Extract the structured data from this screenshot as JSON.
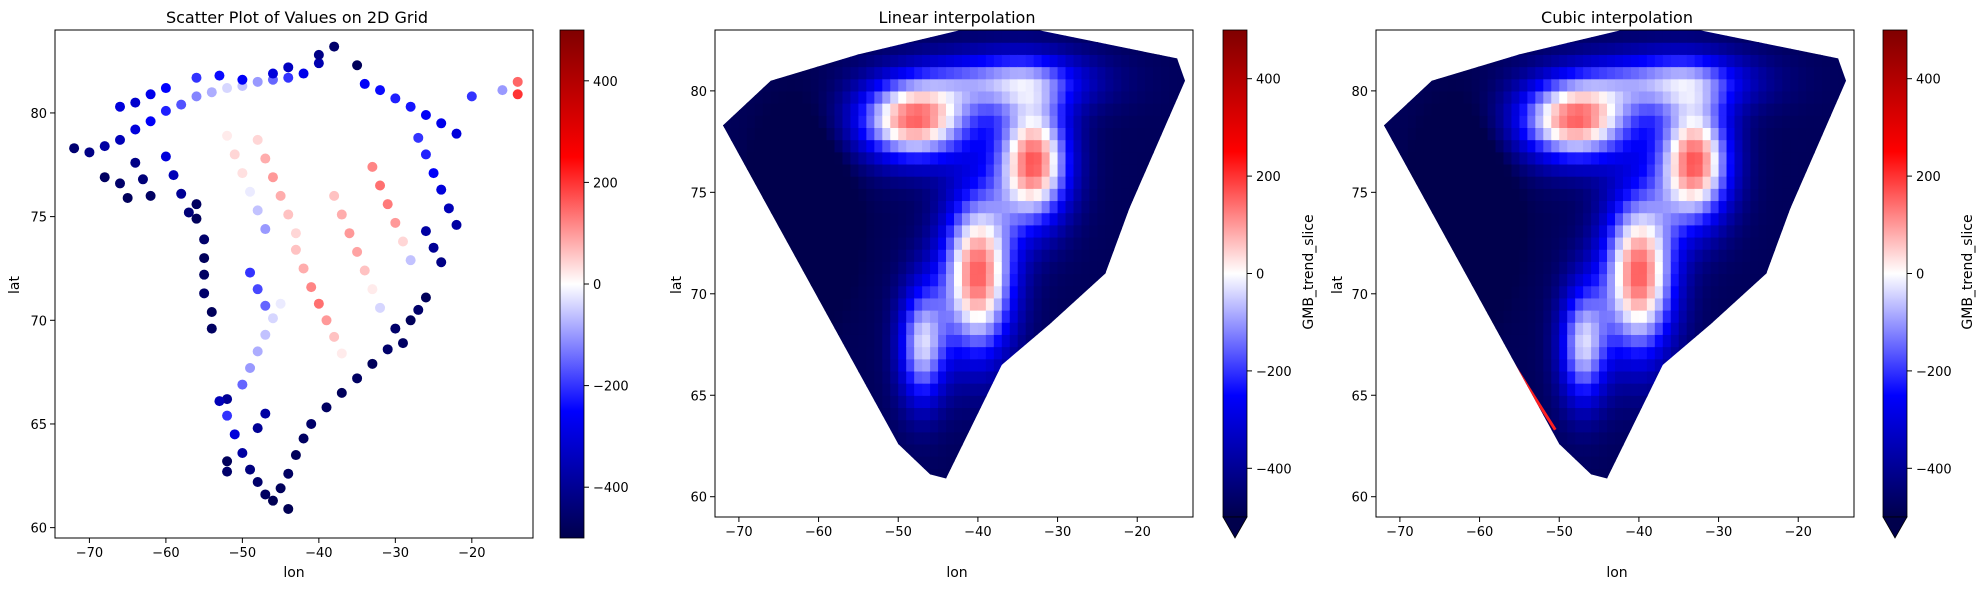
{
  "colormap": {
    "name": "seismic",
    "stops": [
      "#00004c",
      "#0000ff",
      "#ffffff",
      "#ff0000",
      "#7f0000"
    ],
    "vmin": -500,
    "vmax": 500
  },
  "chart_data": [
    {
      "type": "scatter",
      "title": "Scatter Plot of Values on 2D Grid",
      "xlabel": "lon",
      "ylabel": "lat",
      "xlim": [
        -74.5,
        -12.0
      ],
      "ylim": [
        59.5,
        84.0
      ],
      "xticks": [
        -70,
        -60,
        -50,
        -40,
        -30,
        -20
      ],
      "yticks": [
        60,
        65,
        70,
        75,
        80
      ],
      "colorbar": {
        "label": "",
        "ticks": [
          -400,
          -200,
          0,
          200,
          400
        ],
        "extend": "none"
      },
      "series": [
        {
          "points": [
            [
              -72,
              78.3,
              -450
            ],
            [
              -70,
              78.1,
              -420
            ],
            [
              -68,
              78.4,
              -380
            ],
            [
              -66,
              78.7,
              -350
            ],
            [
              -64,
              79.2,
              -300
            ],
            [
              -62,
              79.6,
              -260
            ],
            [
              -60,
              80.1,
              -220
            ],
            [
              -58,
              80.4,
              -170
            ],
            [
              -56,
              80.8,
              -120
            ],
            [
              -54,
              81.0,
              -80
            ],
            [
              -52,
              81.2,
              -40
            ],
            [
              -50,
              81.3,
              -60
            ],
            [
              -48,
              81.5,
              -100
            ],
            [
              -46,
              81.6,
              -150
            ],
            [
              -44,
              81.7,
              -200
            ],
            [
              -42,
              81.9,
              -280
            ],
            [
              -40,
              82.4,
              -360
            ],
            [
              -38,
              83.2,
              -460
            ],
            [
              -66,
              80.3,
              -300
            ],
            [
              -64,
              80.5,
              -320
            ],
            [
              -62,
              80.9,
              -280
            ],
            [
              -60,
              81.2,
              -250
            ],
            [
              -56,
              81.7,
              -200
            ],
            [
              -53,
              81.8,
              -240
            ],
            [
              -50,
              81.6,
              -260
            ],
            [
              -46,
              81.9,
              -300
            ],
            [
              -44,
              82.2,
              -340
            ],
            [
              -40,
              82.8,
              -420
            ],
            [
              -35,
              82.3,
              -480
            ],
            [
              -34,
              81.4,
              -260
            ],
            [
              -32,
              81.1,
              -240
            ],
            [
              -30,
              80.7,
              -220
            ],
            [
              -28,
              80.3,
              -230
            ],
            [
              -26,
              79.9,
              -260
            ],
            [
              -24,
              79.5,
              -280
            ],
            [
              -22,
              79.0,
              -300
            ],
            [
              -20,
              80.8,
              -200
            ],
            [
              -16,
              81.1,
              -100
            ],
            [
              -14,
              81.5,
              150
            ],
            [
              -14,
              80.9,
              200
            ],
            [
              -22,
              74.6,
              -380
            ],
            [
              -23,
              75.4,
              -350
            ],
            [
              -24,
              76.3,
              -300
            ],
            [
              -25,
              77.1,
              -260
            ],
            [
              -26,
              78.0,
              -220
            ],
            [
              -27,
              78.8,
              -200
            ],
            [
              -25,
              73.5,
              -400
            ],
            [
              -26,
              74.3,
              -380
            ],
            [
              -24,
              72.8,
              -420
            ],
            [
              -26,
              71.1,
              -480
            ],
            [
              -27,
              70.5,
              -460
            ],
            [
              -28,
              70.0,
              -480
            ],
            [
              -30,
              69.6,
              -460
            ],
            [
              -29,
              68.9,
              -470
            ],
            [
              -31,
              68.6,
              -460
            ],
            [
              -33,
              67.9,
              -480
            ],
            [
              -35,
              67.2,
              -470
            ],
            [
              -37,
              66.5,
              -480
            ],
            [
              -39,
              65.8,
              -470
            ],
            [
              -41,
              65.0,
              -460
            ],
            [
              -42,
              64.3,
              -470
            ],
            [
              -43,
              63.5,
              -480
            ],
            [
              -44,
              62.6,
              -470
            ],
            [
              -45,
              61.9,
              -480
            ],
            [
              -46,
              61.3,
              -490
            ],
            [
              -44,
              60.9,
              -490
            ],
            [
              -47,
              61.6,
              -470
            ],
            [
              -48,
              62.2,
              -460
            ],
            [
              -49,
              62.8,
              -430
            ],
            [
              -50,
              63.6,
              -380
            ],
            [
              -51,
              64.5,
              -300
            ],
            [
              -52,
              65.4,
              -200
            ],
            [
              -52,
              66.2,
              -400
            ],
            [
              -53,
              66.1,
              -350
            ],
            [
              -50,
              66.9,
              -150
            ],
            [
              -49,
              67.7,
              -100
            ],
            [
              -48,
              68.5,
              -80
            ],
            [
              -47,
              69.3,
              -60
            ],
            [
              -46,
              70.1,
              -40
            ],
            [
              -45,
              70.8,
              -20
            ],
            [
              -55,
              73.0,
              -480
            ],
            [
              -55,
              72.2,
              -470
            ],
            [
              -55,
              71.3,
              -460
            ],
            [
              -54,
              70.4,
              -480
            ],
            [
              -54,
              69.6,
              -470
            ],
            [
              -56,
              75.6,
              -470
            ],
            [
              -56,
              74.9,
              -480
            ],
            [
              -55,
              73.9,
              -460
            ],
            [
              -49,
              72.3,
              -200
            ],
            [
              -48,
              71.5,
              -180
            ],
            [
              -47,
              70.7,
              -150
            ],
            [
              -43,
              73.4,
              60
            ],
            [
              -42,
              72.5,
              80
            ],
            [
              -41,
              71.6,
              120
            ],
            [
              -40,
              70.8,
              140
            ],
            [
              -39,
              70.0,
              100
            ],
            [
              -38,
              69.2,
              60
            ],
            [
              -37,
              68.4,
              20
            ],
            [
              -38,
              76.0,
              60
            ],
            [
              -37,
              75.1,
              80
            ],
            [
              -36,
              74.2,
              100
            ],
            [
              -35,
              73.3,
              90
            ],
            [
              -34,
              72.4,
              60
            ],
            [
              -33,
              71.5,
              20
            ],
            [
              -32,
              70.6,
              -40
            ],
            [
              -33,
              77.4,
              120
            ],
            [
              -32,
              76.5,
              140
            ],
            [
              -31,
              75.6,
              130
            ],
            [
              -30,
              74.7,
              100
            ],
            [
              -29,
              73.8,
              40
            ],
            [
              -28,
              72.9,
              -60
            ],
            [
              -48,
              78.7,
              40
            ],
            [
              -47,
              77.8,
              80
            ],
            [
              -46,
              76.9,
              100
            ],
            [
              -45,
              76.0,
              80
            ],
            [
              -44,
              75.1,
              60
            ],
            [
              -43,
              74.2,
              40
            ],
            [
              -52,
              78.9,
              20
            ],
            [
              -51,
              78.0,
              40
            ],
            [
              -50,
              77.1,
              30
            ],
            [
              -49,
              76.2,
              -20
            ],
            [
              -48,
              75.3,
              -60
            ],
            [
              -47,
              74.4,
              -100
            ],
            [
              -60,
              77.9,
              -300
            ],
            [
              -59,
              77.0,
              -350
            ],
            [
              -58,
              76.1,
              -400
            ],
            [
              -57,
              75.2,
              -440
            ],
            [
              -64,
              77.6,
              -420
            ],
            [
              -63,
              76.8,
              -440
            ],
            [
              -62,
              76.0,
              -470
            ],
            [
              -66,
              76.6,
              -460
            ],
            [
              -65,
              75.9,
              -480
            ],
            [
              -68,
              76.9,
              -470
            ],
            [
              -52,
              63.2,
              -480
            ],
            [
              -52,
              62.7,
              -460
            ],
            [
              -48,
              64.8,
              -400
            ],
            [
              -47,
              65.5,
              -380
            ]
          ]
        }
      ]
    },
    {
      "type": "heatmap",
      "title": "Linear interpolation",
      "xlabel": "lon",
      "ylabel": "lat",
      "xlim": [
        -73.0,
        -13.0
      ],
      "ylim": [
        59.0,
        83.0
      ],
      "xticks": [
        -70,
        -60,
        -50,
        -40,
        -30,
        -20
      ],
      "yticks": [
        60,
        65,
        70,
        75,
        80
      ],
      "colorbar": {
        "label": "GMB_trend_slice",
        "ticks": [
          -400,
          -200,
          0,
          200,
          400
        ],
        "extend": "min"
      }
    },
    {
      "type": "heatmap",
      "title": "Cubic interpolation",
      "xlabel": "lon",
      "ylabel": "lat",
      "xlim": [
        -73.0,
        -13.0
      ],
      "ylim": [
        59.0,
        83.0
      ],
      "xticks": [
        -70,
        -60,
        -50,
        -40,
        -30,
        -20
      ],
      "yticks": [
        60,
        65,
        70,
        75,
        80
      ],
      "colorbar": {
        "label": "GMB_trend_slice",
        "ticks": [
          -400,
          -200,
          0,
          200,
          400
        ],
        "extend": "min"
      }
    }
  ]
}
